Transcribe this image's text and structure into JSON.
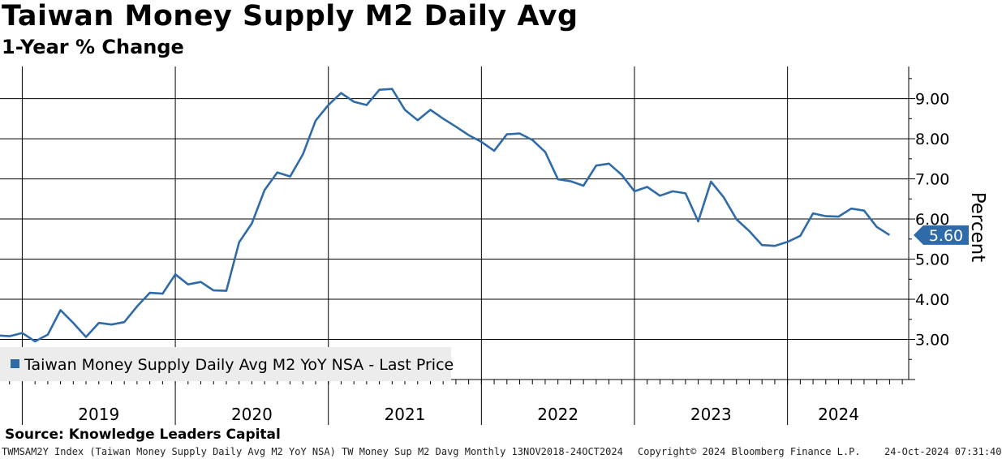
{
  "header": {
    "title": "Taiwan Money Supply M2 Daily Avg",
    "subtitle": "1-Year % Change"
  },
  "footer": {
    "source": "Source: Knowledge Leaders Capital",
    "ticker": "TWMSAM2Y Index (Taiwan Money Supply Daily Avg M2 YoY NSA) TW Money Sup M2 Davg  Monthly 13NOV2018-24OCT2024",
    "copyright": "Copyright© 2024 Bloomberg Finance L.P.",
    "timestamp": "24-Oct-2024 07:31:40"
  },
  "colors": {
    "series": "#2e6ba8",
    "grid": "#000000"
  },
  "chart_data": {
    "type": "line",
    "title": "Taiwan Money Supply M2 Daily Avg",
    "subtitle": "1-Year % Change",
    "ylabel": "Percent",
    "ylim": [
      2.0,
      9.8
    ],
    "yticks": [
      "3.00",
      "4.00",
      "5.00",
      "6.00",
      "7.00",
      "8.00",
      "9.00"
    ],
    "yticks_values": [
      3,
      4,
      5,
      6,
      7,
      8,
      9
    ],
    "years": [
      "2019",
      "2020",
      "2021",
      "2022",
      "2023",
      "2024"
    ],
    "x_start": "Nov 2018",
    "last_value_label": "5.60",
    "legend": "Taiwan Money Supply Daily Avg M2 YoY NSA - Last Price",
    "series": [
      {
        "name": "Taiwan Money Supply Daily Avg M2 YoY NSA - Last Price",
        "values": [
          3.1,
          3.08,
          3.16,
          2.95,
          3.12,
          3.73,
          3.41,
          3.06,
          3.41,
          3.37,
          3.43,
          3.82,
          4.16,
          4.14,
          4.62,
          4.37,
          4.43,
          4.22,
          4.21,
          5.42,
          5.89,
          6.72,
          7.16,
          7.06,
          7.61,
          8.45,
          8.84,
          9.14,
          8.92,
          8.84,
          9.22,
          9.24,
          8.72,
          8.46,
          8.72,
          8.5,
          8.3,
          8.09,
          7.92,
          7.7,
          8.11,
          8.13,
          7.97,
          7.67,
          6.99,
          6.94,
          6.83,
          7.33,
          7.38,
          7.1,
          6.69,
          6.8,
          6.58,
          6.69,
          6.64,
          5.94,
          6.93,
          6.54,
          5.99,
          5.7,
          5.35,
          5.33,
          5.43,
          5.58,
          6.14,
          6.07,
          6.06,
          6.26,
          6.21,
          5.8,
          5.6
        ]
      }
    ]
  }
}
